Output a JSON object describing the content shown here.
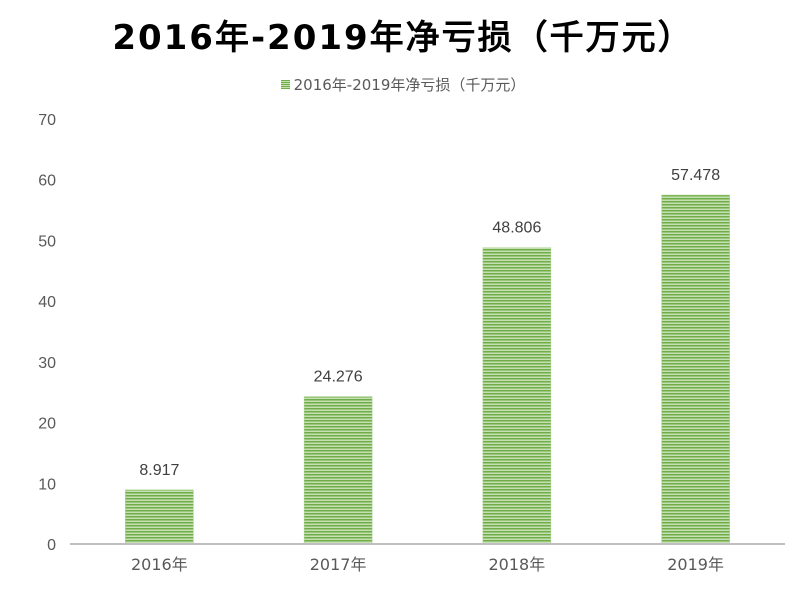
{
  "chart_data": {
    "type": "bar",
    "title": "2016年-2019年净亏损（千万元）",
    "categories": [
      "2016年",
      "2017年",
      "2018年",
      "2019年"
    ],
    "series": [
      {
        "name": "2016年-2019年净亏损（千万元）",
        "values": [
          8.917,
          24.276,
          48.806,
          57.478
        ]
      }
    ],
    "data_labels": [
      "8.917",
      "24.276",
      "48.806",
      "57.478"
    ],
    "y_ticks": [
      "0",
      "10",
      "20",
      "30",
      "40",
      "50",
      "60",
      "70"
    ],
    "ylim": [
      0,
      70
    ],
    "xlabel": "",
    "ylabel": "",
    "grid": false,
    "legend_position": "top",
    "colors": {
      "bar_dark": "#70ad47",
      "bar_light": "#c5e0b4",
      "axis": "#bfbfbf",
      "text": "#595959"
    }
  }
}
